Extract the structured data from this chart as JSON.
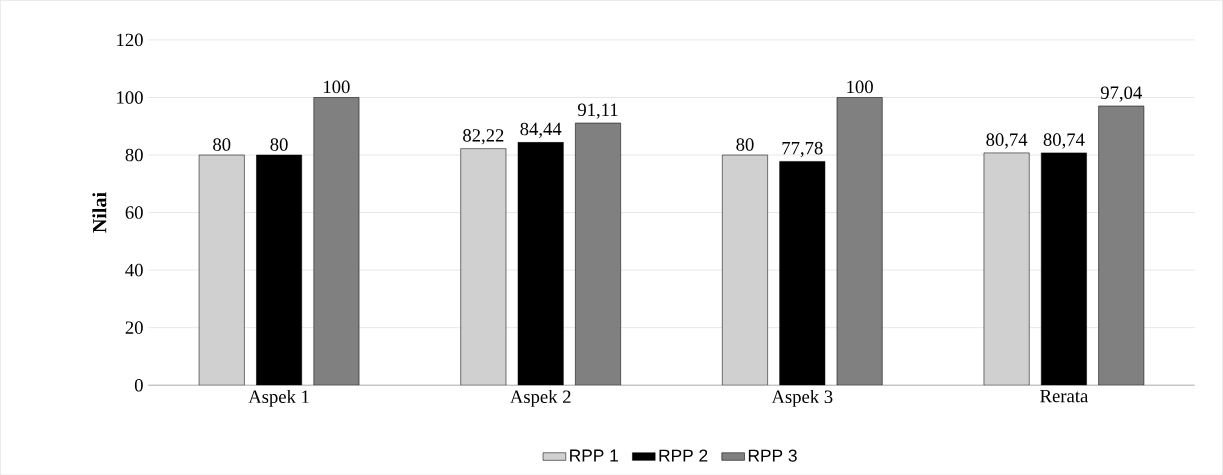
{
  "chart_data": {
    "type": "bar",
    "ylabel": "Nilai",
    "categories": [
      "Aspek 1",
      "Aspek 2",
      "Aspek 3",
      "Rerata"
    ],
    "series": [
      {
        "name": "RPP 1",
        "color": "#d0d0d0",
        "values": [
          80,
          82.22,
          80,
          80.74
        ],
        "value_labels": [
          "80",
          "82,22",
          "80",
          "80,74"
        ]
      },
      {
        "name": "RPP 2",
        "color": "#000000",
        "values": [
          80,
          84.44,
          77.78,
          80.74
        ],
        "value_labels": [
          "80",
          "84,44",
          "77,78",
          "80,74"
        ]
      },
      {
        "name": "RPP 3",
        "color": "#808080",
        "values": [
          100,
          91.11,
          100,
          97.04
        ],
        "value_labels": [
          "100",
          "91,11",
          "100",
          "97,04"
        ]
      }
    ],
    "ylim": [
      0,
      120
    ],
    "yticks": [
      0,
      20,
      40,
      60,
      80,
      100,
      120
    ],
    "grid": "y",
    "legend": "bottom"
  }
}
